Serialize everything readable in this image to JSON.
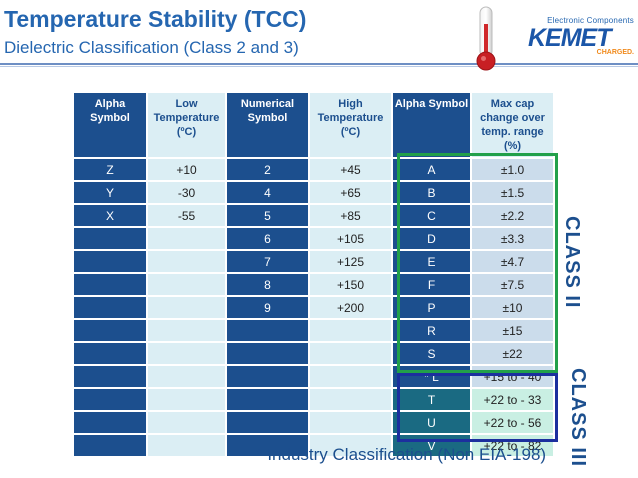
{
  "title": "Temperature Stability (TCC)",
  "subtitle": "Dielectric Classification (Class 2 and 3)",
  "logo": {
    "tagline": "Electronic Components",
    "brand": "KEMET",
    "charged": "CHARGED."
  },
  "colors": {
    "title_blue": "#2566b0",
    "header_dark": "#1c4f8e",
    "header_light": "#dbeef4",
    "class2_border": "#22a04a",
    "class3_border": "#1c2f9e"
  },
  "table": {
    "headers": [
      "Alpha Symbol",
      "Low Temperature (ºC)",
      "Numerical Symbol",
      "High Temperature (ºC)",
      "Alpha Symbol",
      "Max cap change over temp. range (%)"
    ],
    "rows": [
      [
        "Z",
        "+10",
        "2",
        "+45",
        "A",
        "±1.0"
      ],
      [
        "Y",
        "-30",
        "4",
        "+65",
        "B",
        "±1.5"
      ],
      [
        "X",
        "-55",
        "5",
        "+85",
        "C",
        "±2.2"
      ],
      [
        "",
        "",
        "6",
        "+105",
        "D",
        "±3.3"
      ],
      [
        "",
        "",
        "7",
        "+125",
        "E",
        "±4.7"
      ],
      [
        "",
        "",
        "8",
        "+150",
        "F",
        "±7.5"
      ],
      [
        "",
        "",
        "9",
        "+200",
        "P",
        "±10"
      ],
      [
        "",
        "",
        "",
        "",
        "R",
        "±15"
      ],
      [
        "",
        "",
        "",
        "",
        "S",
        "±22"
      ],
      [
        "",
        "",
        "",
        "",
        "* L",
        "+15 to - 40"
      ],
      [
        "",
        "",
        "",
        "",
        "T",
        "+22 to - 33"
      ],
      [
        "",
        "",
        "",
        "",
        "U",
        "+22 to - 56"
      ],
      [
        "",
        "",
        "",
        "",
        "V",
        "+22 to - 82"
      ]
    ]
  },
  "class_labels": {
    "class2": "CLASS II",
    "class3": "CLASS III"
  },
  "footnote": "* Industry Classification (Non EIA-198)"
}
